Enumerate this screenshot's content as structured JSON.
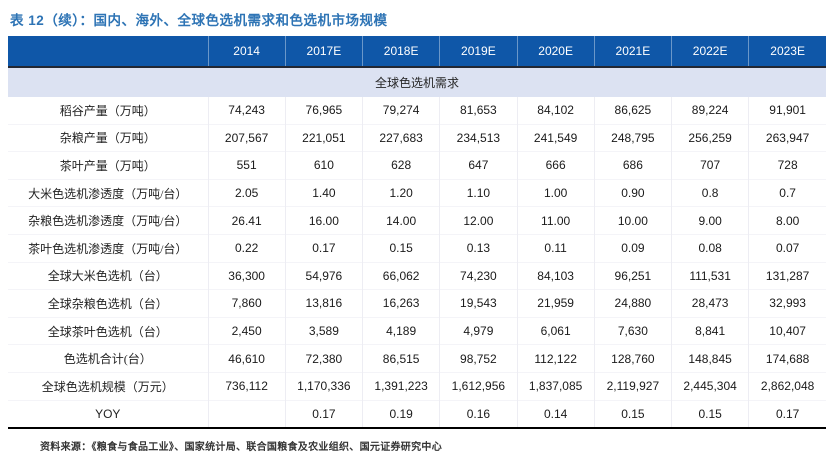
{
  "title": "表 12（续）：国内、海外、全球色选机需求和色选机市场规模",
  "table": {
    "columns": [
      "",
      "2014",
      "2017E",
      "2018E",
      "2019E",
      "2020E",
      "2021E",
      "2022E",
      "2023E"
    ],
    "section_header": "全球色选机需求",
    "rows": [
      {
        "label": "稻谷产量（万吨）",
        "values": [
          "74,243",
          "76,965",
          "79,274",
          "81,653",
          "84,102",
          "86,625",
          "89,224",
          "91,901"
        ]
      },
      {
        "label": "杂粮产量（万吨）",
        "values": [
          "207,567",
          "221,051",
          "227,683",
          "234,513",
          "241,549",
          "248,795",
          "256,259",
          "263,947"
        ]
      },
      {
        "label": "茶叶产量（万吨）",
        "values": [
          "551",
          "610",
          "628",
          "647",
          "666",
          "686",
          "707",
          "728"
        ]
      },
      {
        "label": "大米色选机渗透度（万吨/台）",
        "values": [
          "2.05",
          "1.40",
          "1.20",
          "1.10",
          "1.00",
          "0.90",
          "0.8",
          "0.7"
        ]
      },
      {
        "label": "杂粮色选机渗透度（万吨/台）",
        "values": [
          "26.41",
          "16.00",
          "14.00",
          "12.00",
          "11.00",
          "10.00",
          "9.00",
          "8.00"
        ]
      },
      {
        "label": "茶叶色选机渗透度（万吨/台）",
        "values": [
          "0.22",
          "0.17",
          "0.15",
          "0.13",
          "0.11",
          "0.09",
          "0.08",
          "0.07"
        ]
      },
      {
        "label": "全球大米色选机（台）",
        "values": [
          "36,300",
          "54,976",
          "66,062",
          "74,230",
          "84,103",
          "96,251",
          "111,531",
          "131,287"
        ]
      },
      {
        "label": "全球杂粮色选机（台）",
        "values": [
          "7,860",
          "13,816",
          "16,263",
          "19,543",
          "21,959",
          "24,880",
          "28,473",
          "32,993"
        ]
      },
      {
        "label": "全球茶叶色选机（台）",
        "values": [
          "2,450",
          "3,589",
          "4,189",
          "4,979",
          "6,061",
          "7,630",
          "8,841",
          "10,407"
        ]
      },
      {
        "label": "色选机合计(台）",
        "values": [
          "46,610",
          "72,380",
          "86,515",
          "98,752",
          "112,122",
          "128,760",
          "148,845",
          "174,688"
        ]
      },
      {
        "label": "全球色选机规模（万元）",
        "values": [
          "736,112",
          "1,170,336",
          "1,391,223",
          "1,612,956",
          "1,837,085",
          "2,119,927",
          "2,445,304",
          "2,862,048"
        ]
      },
      {
        "label": "YOY",
        "values": [
          "",
          "0.17",
          "0.19",
          "0.16",
          "0.14",
          "0.15",
          "0.15",
          "0.17"
        ]
      }
    ]
  },
  "footer": "资料来源：《粮食与食品工业》、国家统计局、联合国粮食及农业组织、国元证券研究中心",
  "colors": {
    "header_bg": "#0F57A8",
    "section_bg": "#DCE2F2",
    "title_blue": "#2E74B5",
    "bottom_rule": "#000000"
  }
}
